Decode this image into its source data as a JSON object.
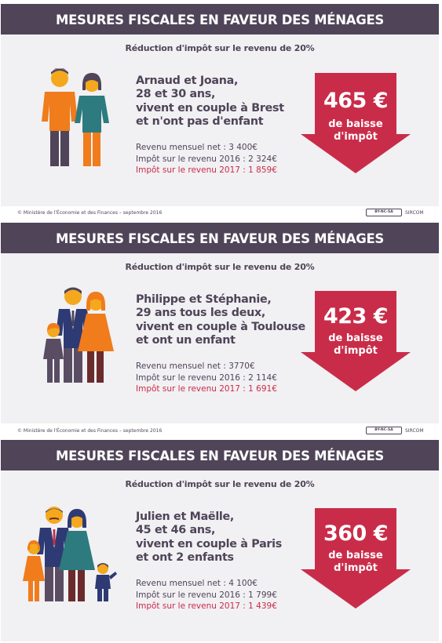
{
  "cards": [
    {
      "header": "MESURES FISCALES EN FAVEUR DES MÉNAGES",
      "subtitle": "Réduction d'impôt sur le revenu de 20%",
      "description": [
        "Arnaud et Joana,",
        "28 et 30 ans,",
        "vivent en couple à Brest",
        "et n'ont pas d'enfant"
      ],
      "income": "Revenu mensuel net : 3 400€",
      "tax_2016": "Impôt sur le revenu 2016 : 2 324€",
      "tax_2017": "Impôt sur le revenu 2017 : 1 859€",
      "amount": "465 €",
      "decrease_label": [
        "de baisse",
        "d'impôt"
      ],
      "family_icons": [
        "man-icon",
        "woman-icon"
      ]
    },
    {
      "header": "MESURES FISCALES EN FAVEUR DES MÉNAGES",
      "subtitle": "Réduction d'impôt sur le revenu de 20%",
      "description": [
        "Philippe et Stéphanie,",
        "29 ans tous les deux,",
        "vivent en couple à Toulouse",
        "et ont un enfant"
      ],
      "income": "Revenu mensuel net : 3770€",
      "tax_2016": "Impôt sur le revenu 2016 : 2 114€",
      "tax_2017": "Impôt sur le revenu 2017 : 1 691€",
      "amount": "423 €",
      "decrease_label": [
        "de baisse",
        "d'impôt"
      ],
      "family_icons": [
        "child-icon",
        "man-icon",
        "woman-icon"
      ]
    },
    {
      "header": "MESURES FISCALES EN FAVEUR DES MÉNAGES",
      "subtitle": "Réduction d'impôt sur le revenu de 20%",
      "description": [
        "Julien et Maëlle,",
        "45 et 46 ans,",
        "vivent en couple à Paris",
        "et ont 2 enfants"
      ],
      "income": "Revenu mensuel net : 4 100€",
      "tax_2016": "Impôt sur le revenu 2016 : 1 799€",
      "tax_2017": "Impôt sur le revenu 2017 : 1 439€",
      "amount": "360 €",
      "decrease_label": [
        "de baisse",
        "d'impôt"
      ],
      "family_icons": [
        "girl-icon",
        "man-icon",
        "woman-icon",
        "boy-icon"
      ]
    }
  ],
  "footers": [
    {
      "credit": "© Ministère de l'Économie et des Finances – septembre 2016",
      "license": "BY-NC-SA",
      "org": "SIRCOM"
    },
    {
      "credit": "© Ministère de l'Économie et des Finances – septembre 2016",
      "license": "BY-NC-SA",
      "org": "SIRCOM"
    }
  ],
  "colors": {
    "header_bg": "#4f4458",
    "card_bg": "#f1f0f3",
    "accent_red": "#c92c49",
    "orange": "#f07c1c",
    "teal": "#2d7b7e",
    "navy": "#2e3a74",
    "grey_purple": "#5a4d63"
  }
}
